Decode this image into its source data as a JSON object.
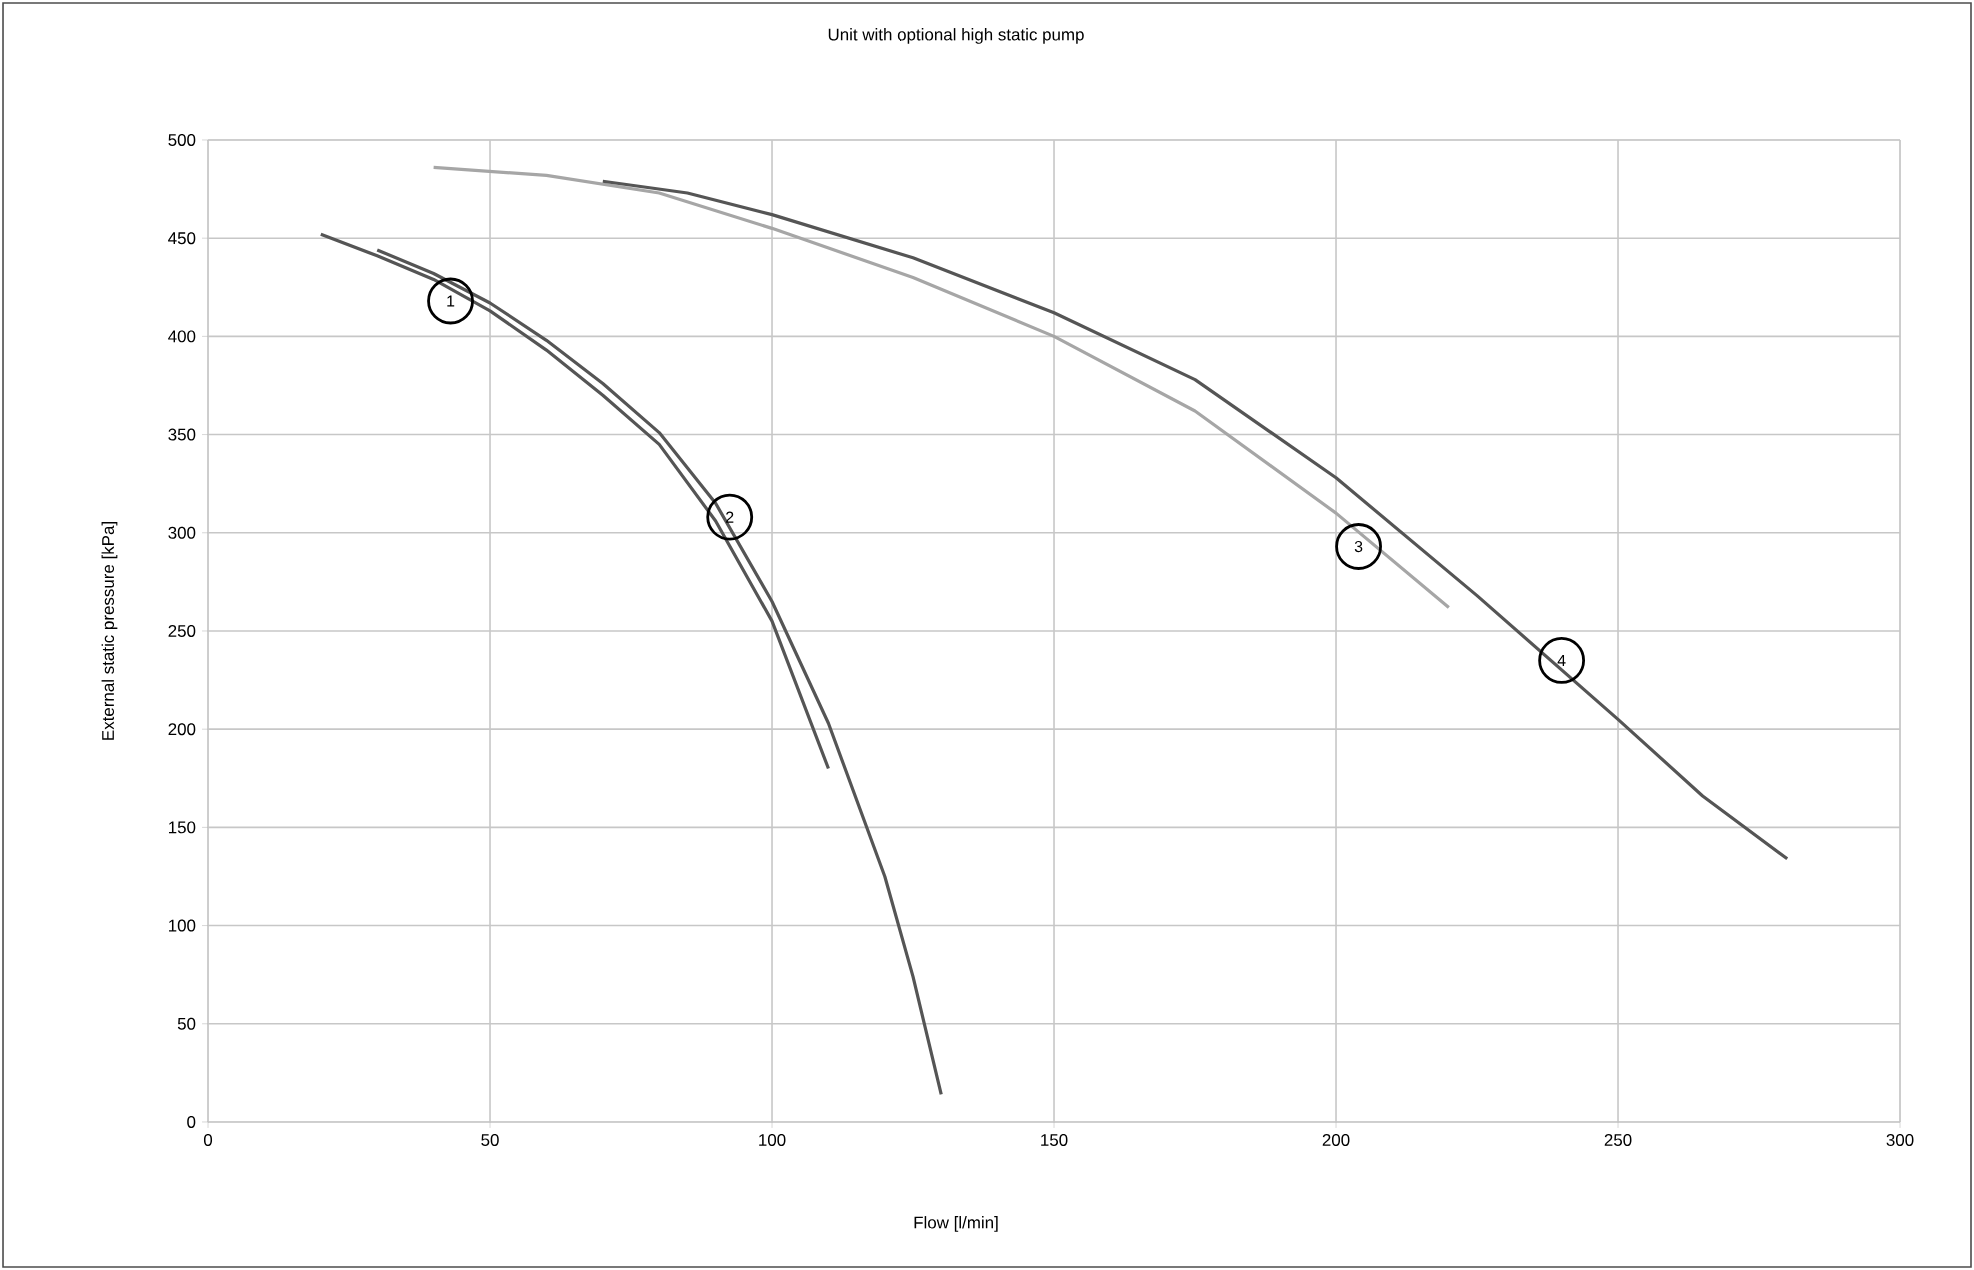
{
  "chart_data": {
    "type": "line",
    "title": "Unit with optional high static pump",
    "xlabel": "Flow [l/min]",
    "ylabel": "External static pressure [kPa]",
    "xlim": [
      0,
      300
    ],
    "ylim": [
      0,
      500
    ],
    "xticks": [
      0,
      50,
      100,
      150,
      200,
      250,
      300
    ],
    "yticks": [
      0,
      50,
      100,
      150,
      200,
      250,
      300,
      350,
      400,
      450,
      500
    ],
    "grid": true,
    "series": [
      {
        "color": "#555555",
        "x": [
          20,
          30,
          40,
          50,
          60,
          70,
          80,
          90,
          100,
          110
        ],
        "values": [
          452,
          441,
          429,
          413,
          393,
          370,
          345,
          306,
          255,
          180
        ]
      },
      {
        "color": "#555555",
        "x": [
          30,
          40,
          50,
          60,
          70,
          80,
          90,
          100,
          110,
          120,
          125,
          130
        ],
        "values": [
          444,
          432,
          417,
          398,
          376,
          351,
          315,
          265,
          203,
          125,
          74,
          14
        ]
      },
      {
        "color": "#a6a6a6",
        "x": [
          40,
          60,
          80,
          100,
          125,
          150,
          175,
          200,
          220
        ],
        "values": [
          486,
          482,
          473,
          455,
          430,
          400,
          362,
          310,
          262
        ]
      },
      {
        "color": "#555555",
        "x": [
          70,
          85,
          100,
          125,
          150,
          175,
          200,
          225,
          250,
          265,
          280
        ],
        "values": [
          479,
          473,
          462,
          440,
          412,
          378,
          328,
          268,
          205,
          166,
          134
        ]
      }
    ],
    "annotations": [
      {
        "text": "1",
        "x": 43,
        "y": 418
      },
      {
        "text": "2",
        "x": 92.5,
        "y": 308
      },
      {
        "text": "3",
        "x": 204,
        "y": 293
      },
      {
        "text": "4",
        "x": 240,
        "y": 235
      }
    ]
  }
}
